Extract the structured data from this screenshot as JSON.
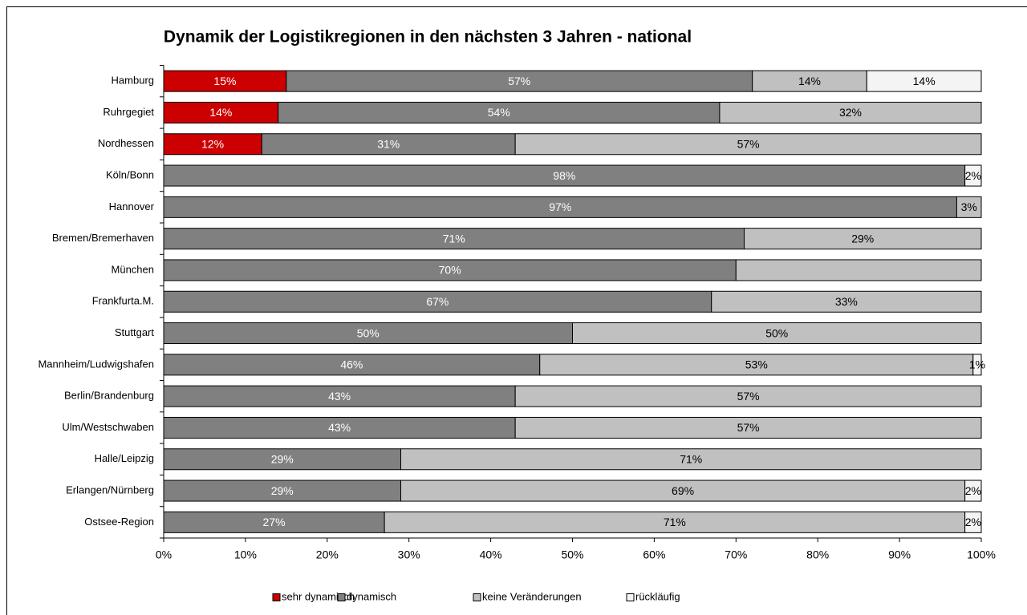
{
  "chart_data": {
    "type": "bar",
    "orientation": "horizontal",
    "stacked": true,
    "title": "Dynamik der Logistikregionen in den nächsten 3 Jahren - national",
    "categories": [
      "Hamburg",
      "Ruhrgegiet",
      "Nordhessen",
      "Köln/Bonn",
      "Hannover",
      "Bremen/Bremerhaven",
      "München",
      "Frankfurta.M.",
      "Stuttgart",
      "Mannheim/Ludwigshafen",
      "Berlin/Brandenburg",
      "Ulm/Westschwaben",
      "Halle/Leipzig",
      "Erlangen/Nürnberg",
      "Ostsee-Region"
    ],
    "series": [
      {
        "name": "sehr dynamisch",
        "color": "#cc0000",
        "label_color": "#ffffff",
        "values": [
          15,
          14,
          12,
          null,
          null,
          null,
          null,
          null,
          null,
          null,
          null,
          null,
          null,
          null,
          null
        ],
        "value_labels": [
          "15%",
          "14%",
          "12%",
          null,
          null,
          null,
          null,
          null,
          null,
          null,
          null,
          null,
          null,
          null,
          null
        ]
      },
      {
        "name": "dynamisch",
        "color": "#808080",
        "label_color": "#ffffff",
        "values": [
          57,
          54,
          31,
          98,
          97,
          71,
          70,
          67,
          50,
          46,
          43,
          43,
          29,
          29,
          27
        ],
        "value_labels": [
          "57%",
          "54%",
          "31%",
          "98%",
          "97%",
          "71%",
          "70%",
          "67%",
          "50%",
          "46%",
          "43%",
          "43%",
          "29%",
          "29%",
          "27%"
        ]
      },
      {
        "name": "keine Veränderungen",
        "color": "#c0c0c0",
        "label_color": "#000000",
        "values": [
          14,
          32,
          57,
          null,
          3,
          29,
          30,
          33,
          50,
          53,
          57,
          57,
          71,
          69,
          71
        ],
        "value_labels": [
          "14%",
          "32%",
          "57%",
          null,
          "3%",
          "29%",
          null,
          "33%",
          "50%",
          "53%",
          "57%",
          "57%",
          "71%",
          "69%",
          "71%"
        ]
      },
      {
        "name": "rückläufig",
        "color": "#f4f4f4",
        "label_color": "#000000",
        "values": [
          14,
          null,
          null,
          2,
          null,
          null,
          null,
          null,
          null,
          1,
          null,
          null,
          null,
          2,
          2
        ],
        "value_labels": [
          "14%",
          null,
          null,
          "2%",
          null,
          null,
          null,
          null,
          null,
          "1%",
          null,
          null,
          null,
          "2%",
          "2%"
        ]
      }
    ],
    "xlim": [
      0,
      100
    ],
    "xticks": [
      {
        "value": 0,
        "label": "0%"
      },
      {
        "value": 10,
        "label": "10%"
      },
      {
        "value": 20,
        "label": "20%"
      },
      {
        "value": 30,
        "label": "30%"
      },
      {
        "value": 40,
        "label": "40%"
      },
      {
        "value": 50,
        "label": "50%"
      },
      {
        "value": 60,
        "label": "60%"
      },
      {
        "value": 70,
        "label": "70%"
      },
      {
        "value": 80,
        "label": "80%"
      },
      {
        "value": 90,
        "label": "90%"
      },
      {
        "value": 100,
        "label": "100%"
      }
    ],
    "legend": "bottom"
  }
}
